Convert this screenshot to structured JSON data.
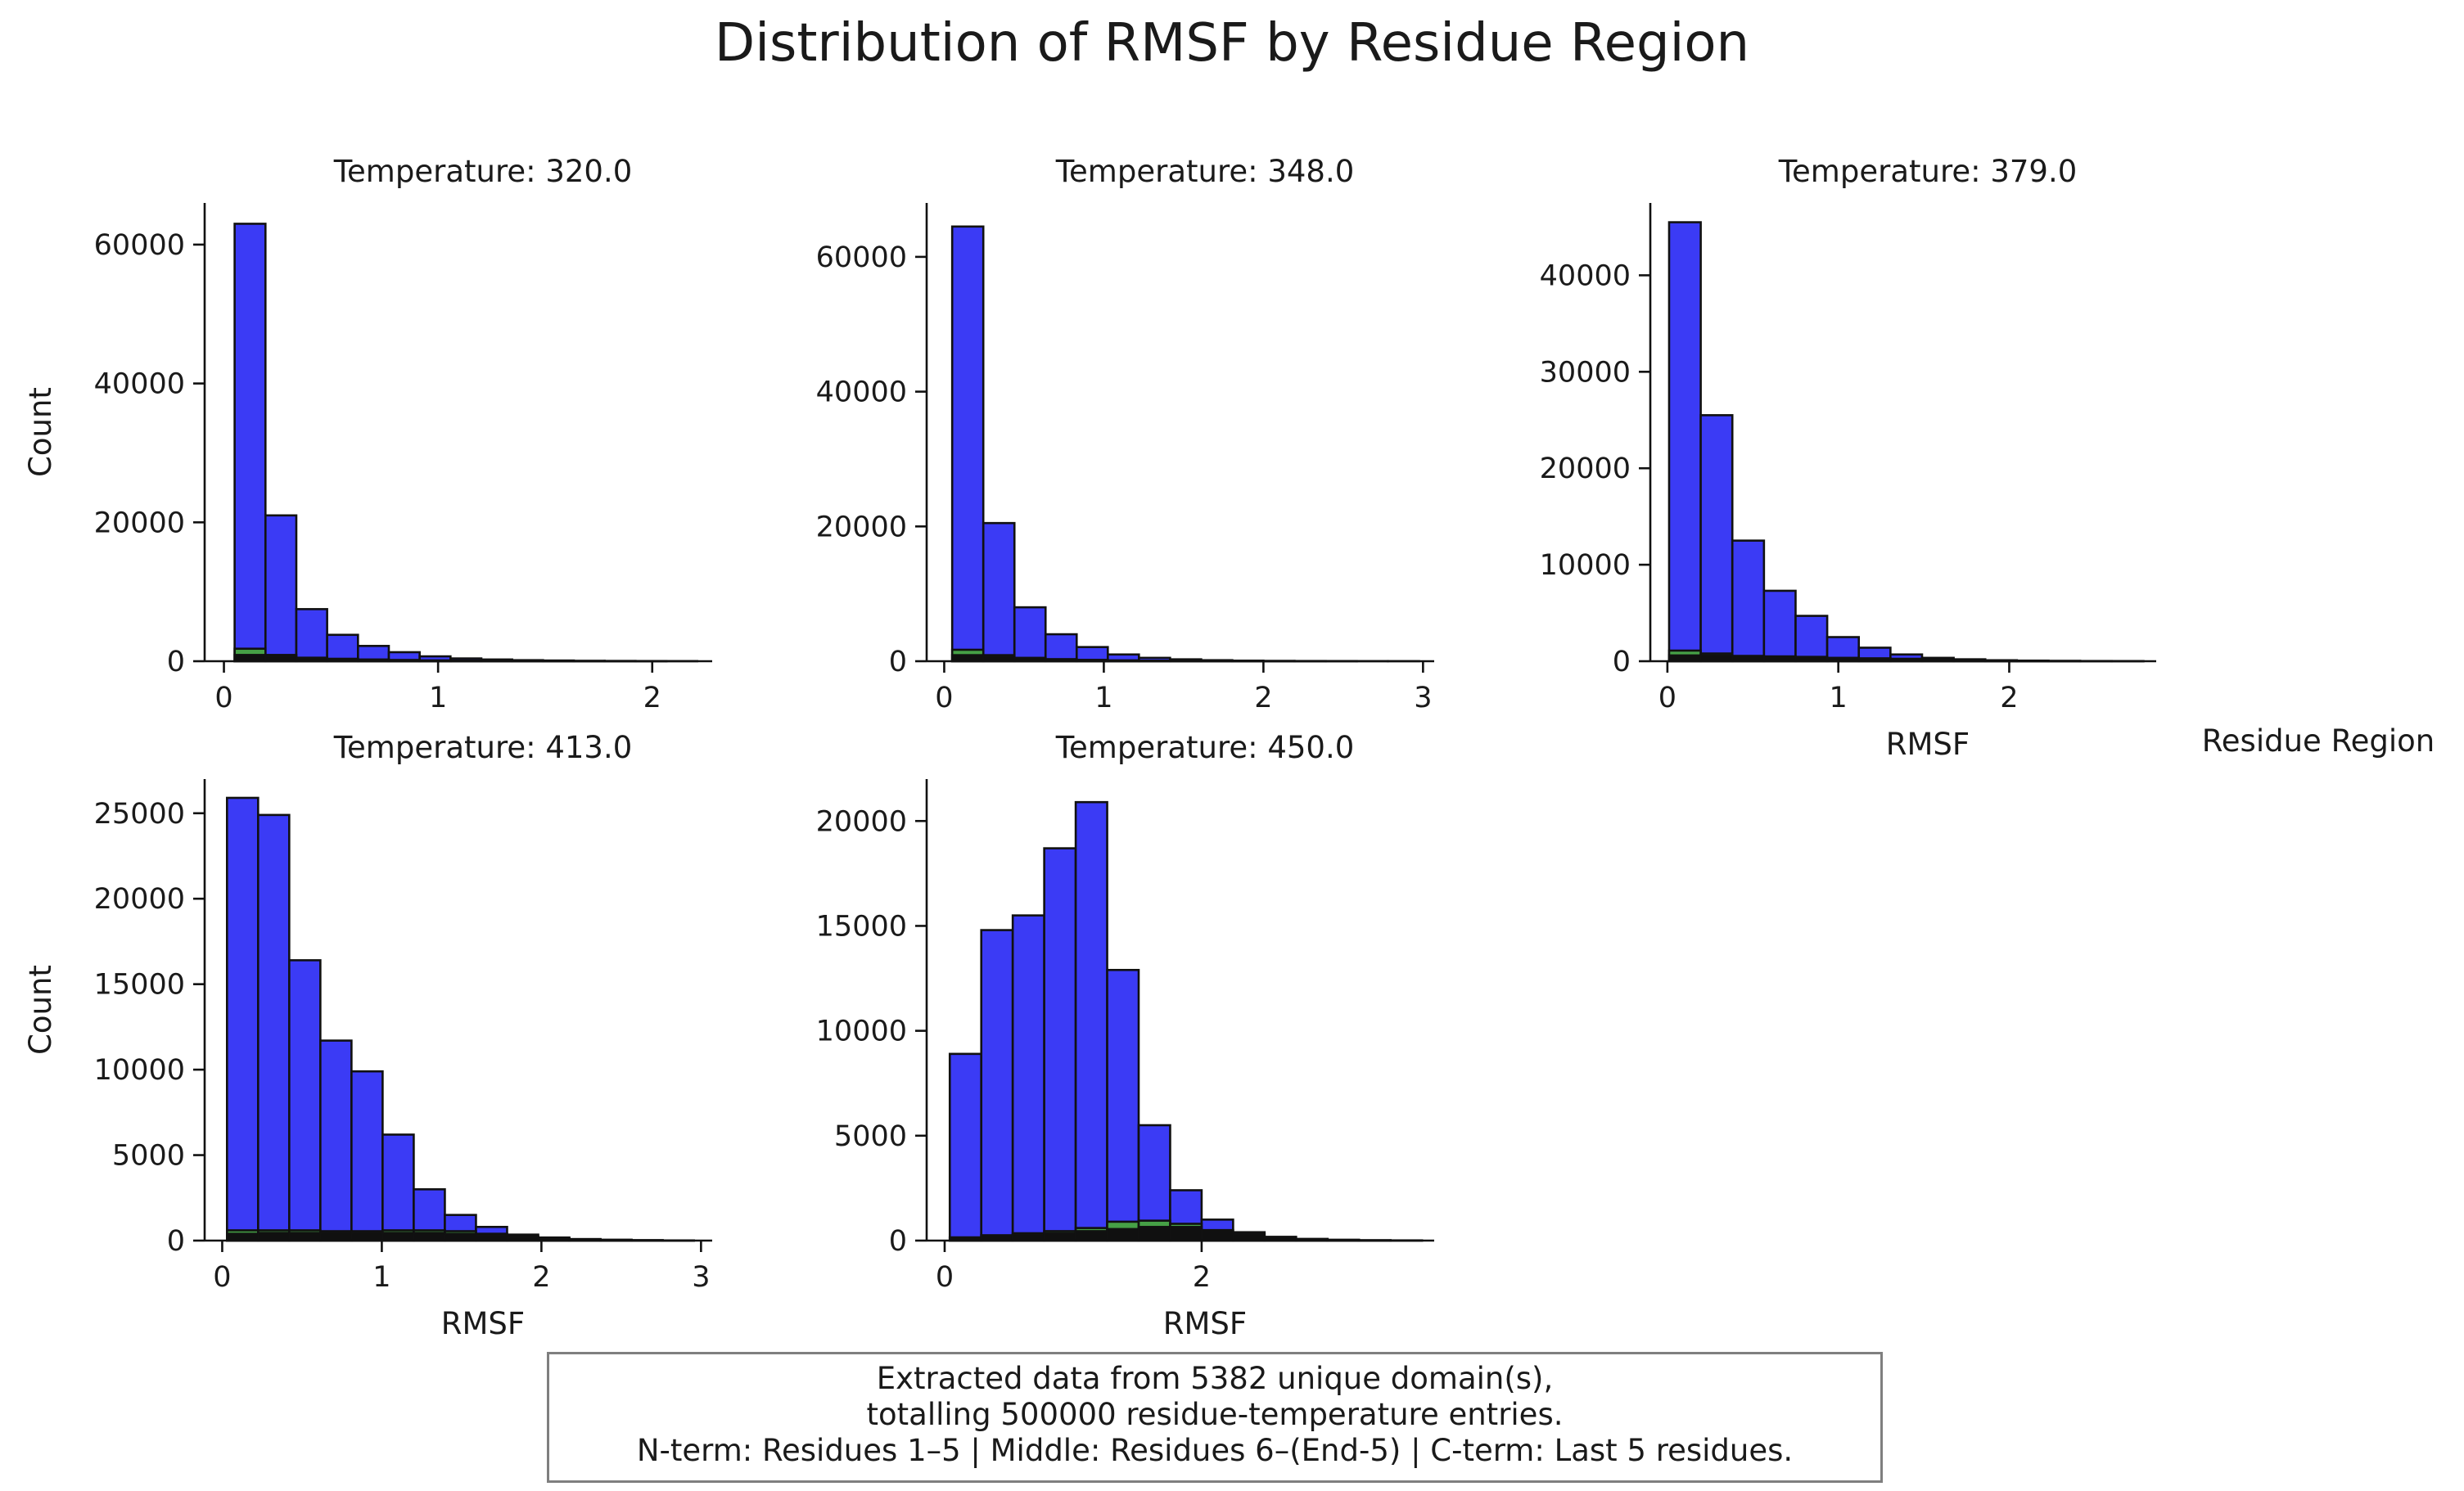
{
  "title": "Distribution of RMSF by Residue Region",
  "legend_title": "Residue Region",
  "caption": [
    "Extracted data from 5382 unique domain(s),",
    "totalling 500000 residue-temperature entries.",
    "N-term: Residues 1–5 | Middle: Residues 6–(End-5) | C-term: Last 5 residues."
  ],
  "colors": {
    "middle": "#3b3bf5",
    "nterm": "#46a046",
    "cterm": "#101010",
    "edge": "#111111"
  },
  "chart_data": [
    {
      "type": "bar",
      "title": "Temperature: 320.0",
      "xlabel": "",
      "ylabel": "Count",
      "xlim": [
        -0.09,
        2.28
      ],
      "ylim": [
        0,
        66000
      ],
      "xticks": [
        0,
        1,
        2
      ],
      "xtick_labels": [
        "0",
        "1",
        "2"
      ],
      "yticks": [
        0,
        20000,
        40000,
        60000
      ],
      "ytick_labels": [
        "0",
        "20000",
        "40000",
        "60000"
      ],
      "bin_edges": [
        0.05,
        0.194,
        0.338,
        0.482,
        0.626,
        0.77,
        0.914,
        1.058,
        1.202,
        1.346,
        1.49,
        1.634,
        1.778,
        1.922,
        2.066,
        2.21
      ],
      "series": [
        {
          "values": [
            63000,
            21000,
            7500,
            3800,
            2200,
            1300,
            700,
            400,
            250,
            150,
            100,
            60,
            40,
            25,
            15
          ]
        },
        {
          "values": [
            1800,
            900,
            500,
            300,
            200,
            120,
            80,
            50,
            30,
            20,
            15,
            10,
            5,
            5,
            0
          ]
        },
        {
          "values": [
            900,
            700,
            500,
            350,
            250,
            180,
            120,
            80,
            50,
            30,
            20,
            15,
            10,
            5,
            0
          ]
        }
      ]
    },
    {
      "type": "bar",
      "title": "Temperature: 348.0",
      "xlabel": "",
      "ylabel": "",
      "xlim": [
        -0.11,
        3.07
      ],
      "ylim": [
        0,
        68000
      ],
      "xticks": [
        0,
        1,
        2,
        3
      ],
      "xtick_labels": [
        "0",
        "1",
        "2",
        "3"
      ],
      "yticks": [
        0,
        20000,
        40000,
        60000
      ],
      "ytick_labels": [
        "0",
        "20000",
        "40000",
        "60000"
      ],
      "bin_edges": [
        0.05,
        0.245,
        0.44,
        0.635,
        0.83,
        1.025,
        1.22,
        1.415,
        1.61,
        1.805,
        2.0,
        2.195,
        2.39,
        2.585,
        2.78,
        2.975
      ],
      "series": [
        {
          "values": [
            64500,
            20500,
            8000,
            4000,
            2100,
            1000,
            500,
            280,
            150,
            80,
            50,
            30,
            20,
            10,
            5
          ]
        },
        {
          "values": [
            1700,
            900,
            500,
            280,
            150,
            80,
            50,
            30,
            15,
            10,
            5,
            5,
            0,
            0,
            0
          ]
        },
        {
          "values": [
            900,
            700,
            450,
            300,
            200,
            130,
            80,
            50,
            30,
            15,
            10,
            5,
            5,
            0,
            0
          ]
        }
      ]
    },
    {
      "type": "bar",
      "title": "Temperature: 379.0",
      "xlabel": "RMSF",
      "ylabel": "",
      "xlim": [
        -0.1,
        2.86
      ],
      "ylim": [
        0,
        47500
      ],
      "xticks": [
        0,
        1,
        2
      ],
      "xtick_labels": [
        "0",
        "1",
        "2"
      ],
      "yticks": [
        0,
        10000,
        20000,
        30000,
        40000
      ],
      "ytick_labels": [
        "0",
        "10000",
        "20000",
        "30000",
        "40000"
      ],
      "bin_edges": [
        0.01,
        0.195,
        0.38,
        0.565,
        0.75,
        0.935,
        1.12,
        1.305,
        1.49,
        1.675,
        1.86,
        2.045,
        2.23,
        2.415,
        2.6,
        2.785
      ],
      "series": [
        {
          "values": [
            45500,
            25500,
            12500,
            7300,
            4700,
            2500,
            1400,
            700,
            350,
            200,
            100,
            60,
            40,
            20,
            10
          ]
        },
        {
          "values": [
            1100,
            800,
            500,
            350,
            250,
            150,
            100,
            60,
            40,
            20,
            10,
            5,
            5,
            0,
            0
          ]
        },
        {
          "values": [
            600,
            600,
            550,
            500,
            450,
            350,
            300,
            250,
            150,
            100,
            60,
            30,
            15,
            10,
            5
          ]
        }
      ]
    },
    {
      "type": "bar",
      "title": "Temperature: 413.0",
      "xlabel": "RMSF",
      "ylabel": "Count",
      "xlim": [
        -0.11,
        3.07
      ],
      "ylim": [
        0,
        27000
      ],
      "xticks": [
        0,
        1,
        2,
        3
      ],
      "xtick_labels": [
        "0",
        "1",
        "2",
        "3"
      ],
      "yticks": [
        0,
        5000,
        10000,
        15000,
        20000,
        25000
      ],
      "ytick_labels": [
        "0",
        "5000",
        "10000",
        "15000",
        "20000",
        "25000"
      ],
      "bin_edges": [
        0.03,
        0.225,
        0.42,
        0.615,
        0.81,
        1.005,
        1.2,
        1.395,
        1.59,
        1.785,
        1.98,
        2.175,
        2.37,
        2.565,
        2.76,
        2.955
      ],
      "series": [
        {
          "values": [
            25900,
            24900,
            16400,
            11700,
            9900,
            6200,
            3000,
            1500,
            800,
            350,
            180,
            90,
            50,
            25,
            10
          ]
        },
        {
          "values": [
            600,
            600,
            600,
            550,
            550,
            600,
            600,
            550,
            400,
            250,
            150,
            80,
            40,
            20,
            5
          ]
        },
        {
          "values": [
            400,
            450,
            450,
            450,
            450,
            450,
            450,
            400,
            300,
            200,
            120,
            60,
            30,
            10,
            5
          ]
        }
      ]
    },
    {
      "type": "bar",
      "title": "Temperature: 450.0",
      "xlabel": "RMSF",
      "ylabel": "",
      "xlim": [
        -0.14,
        3.81
      ],
      "ylim": [
        0,
        22000
      ],
      "xticks": [
        0,
        2
      ],
      "xtick_labels": [
        "0",
        "2"
      ],
      "yticks": [
        0,
        5000,
        10000,
        15000,
        20000
      ],
      "ytick_labels": [
        "0",
        "5000",
        "10000",
        "15000",
        "20000"
      ],
      "bin_edges": [
        0.04,
        0.285,
        0.53,
        0.775,
        1.02,
        1.265,
        1.51,
        1.755,
        2.0,
        2.245,
        2.49,
        2.735,
        2.98,
        3.225,
        3.47,
        3.715
      ],
      "series": [
        {
          "values": [
            8900,
            14800,
            15500,
            18700,
            20900,
            12900,
            5500,
            2400,
            1000,
            400,
            180,
            80,
            40,
            20,
            10
          ]
        },
        {
          "values": [
            150,
            250,
            350,
            450,
            600,
            900,
            950,
            800,
            400,
            150,
            60,
            25,
            10,
            5,
            0
          ]
        },
        {
          "values": [
            150,
            250,
            300,
            350,
            450,
            550,
            650,
            650,
            500,
            300,
            150,
            70,
            30,
            10,
            5
          ]
        }
      ]
    }
  ]
}
